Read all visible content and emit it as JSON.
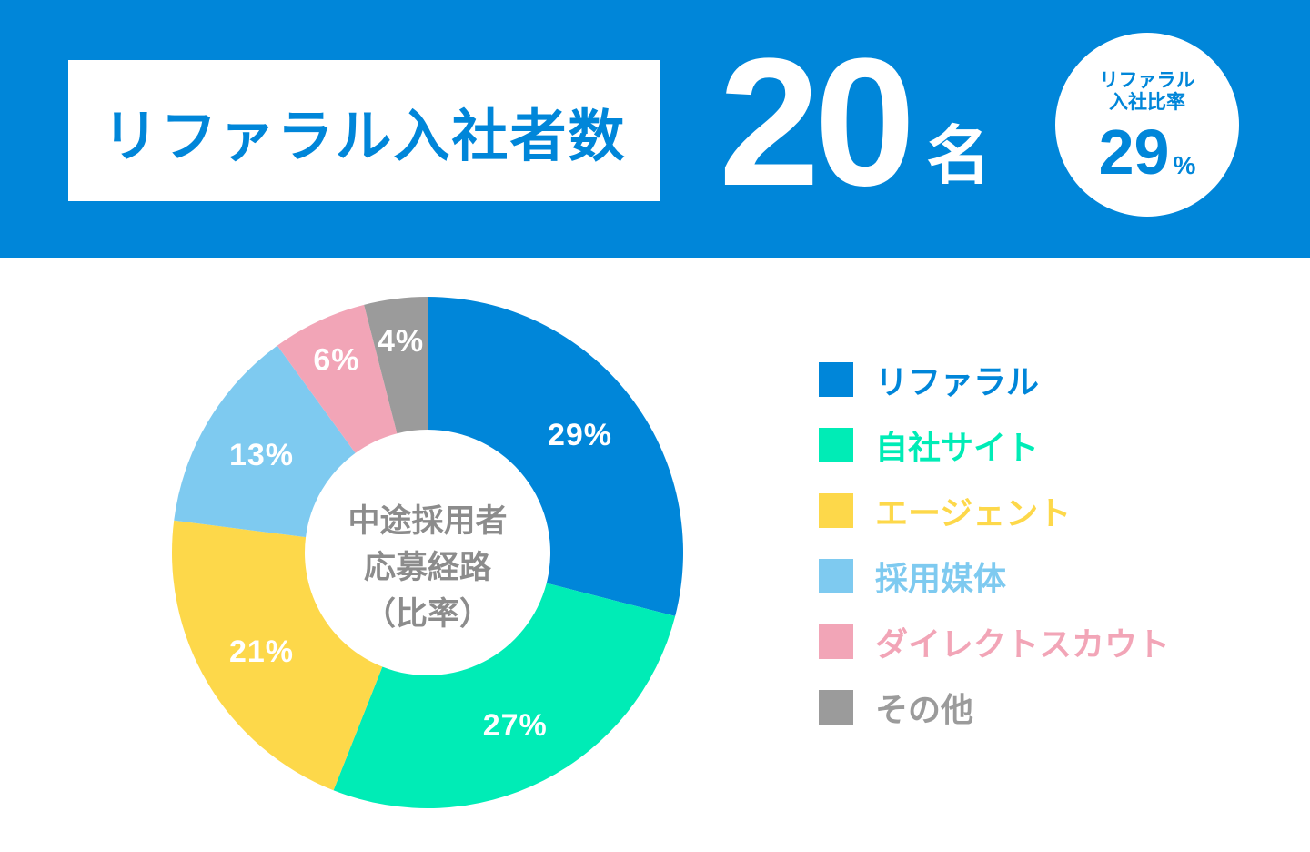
{
  "header": {
    "title": "リファラル入社者数",
    "count": "20",
    "count_unit": "名",
    "ratio_label": "リファラル\n入社比率",
    "ratio_label_line1": "リファラル",
    "ratio_label_line2": "入社比率",
    "ratio_value": "29",
    "ratio_unit": "%",
    "accent_color": "#0086d9"
  },
  "chart_data": {
    "type": "pie",
    "style": "donut",
    "title_lines": [
      "中途採用者",
      "応募経路",
      "（比率）"
    ],
    "unit": "%",
    "categories": [
      "リファラル",
      "自社サイト",
      "エージェント",
      "採用媒体",
      "ダイレクトスカウト",
      "その他"
    ],
    "values": [
      29,
      27,
      21,
      13,
      6,
      4
    ],
    "labels": [
      "29%",
      "27%",
      "21%",
      "13%",
      "6%",
      "4%"
    ],
    "colors": [
      "#0086d9",
      "#00ecb6",
      "#fdd84a",
      "#7ecaf0",
      "#f2a5b7",
      "#9b9b9b"
    ],
    "start": "top",
    "direction": "clockwise",
    "legend_position": "right"
  }
}
